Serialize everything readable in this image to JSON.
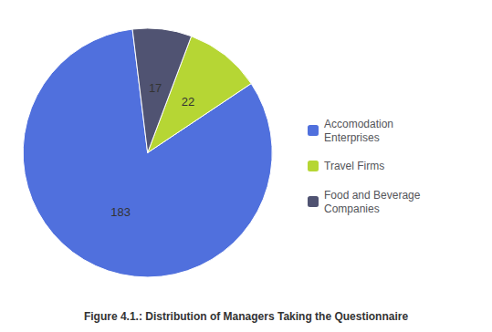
{
  "chart_data": {
    "type": "pie",
    "title": "Figure 4.1.: Distribution of Managers Taking the Questionnaire",
    "categories": [
      "Accomodation\nEnterprises",
      "Travel Firms",
      "Food and Beverage\nCompanies"
    ],
    "values": [
      183,
      22,
      17
    ],
    "data_labels": true,
    "legend": "right"
  }
}
